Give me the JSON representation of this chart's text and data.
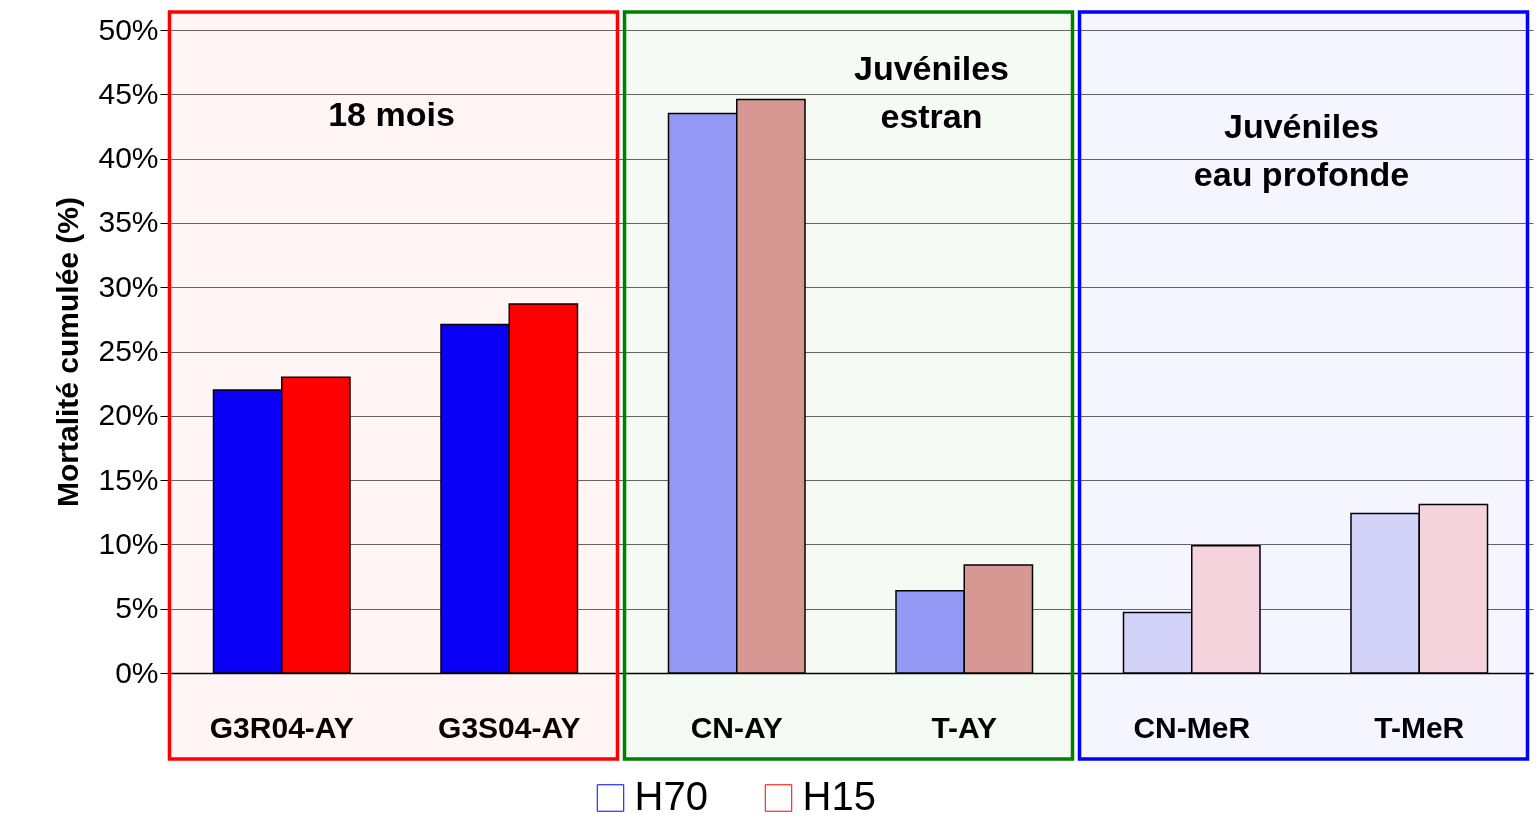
{
  "chart_data": {
    "type": "bar",
    "ylabel": "Mortalité cumulée (%)",
    "categories": [
      "G3R04-AY",
      "G3S04-AY",
      "CN-AY",
      "T-AY",
      "CN-MeR",
      "T-MeR"
    ],
    "series": [
      {
        "name": "H70",
        "color": "#0000ff",
        "colors": [
          "#0000ff",
          "#0000ff",
          "#9999ff",
          "#9999ff",
          "#dcdcfa",
          "#dcdcfa"
        ],
        "values": [
          22.0,
          27.1,
          43.5,
          6.4,
          4.7,
          12.4
        ]
      },
      {
        "name": "H15",
        "color": "#ff0000",
        "colors": [
          "#ff0000",
          "#ff0000",
          "#e09a9a",
          "#e09a9a",
          "#ffdcdc",
          "#ffdcdc"
        ],
        "values": [
          23.0,
          28.7,
          44.6,
          8.4,
          9.9,
          13.1
        ]
      }
    ],
    "ylim": [
      0,
      50
    ],
    "yticks": [
      {
        "value": 0,
        "label": "0%"
      },
      {
        "value": 5,
        "label": "5%"
      },
      {
        "value": 10,
        "label": "10%"
      },
      {
        "value": 15,
        "label": "15%"
      },
      {
        "value": 20,
        "label": "20%"
      },
      {
        "value": 25,
        "label": "25%"
      },
      {
        "value": 30,
        "label": "30%"
      },
      {
        "value": 35,
        "label": "35%"
      },
      {
        "value": 40,
        "label": "40%"
      },
      {
        "value": 45,
        "label": "45%"
      },
      {
        "value": 50,
        "label": "50%"
      }
    ],
    "grid": "y",
    "legend": "bottom",
    "bands": [
      {
        "axis": "x",
        "from": "G3R04-AY",
        "to": "G3S04-AY",
        "label": "18 mois",
        "color": "#ff0000"
      },
      {
        "axis": "x",
        "from": "CN-AY",
        "to": "T-AY",
        "label": "Juvéniles\nestran",
        "color": "#008000"
      },
      {
        "axis": "x",
        "from": "CN-MeR",
        "to": "T-MeR",
        "label": "Juvéniles\neau profonde",
        "color": "#0000ff"
      }
    ]
  }
}
